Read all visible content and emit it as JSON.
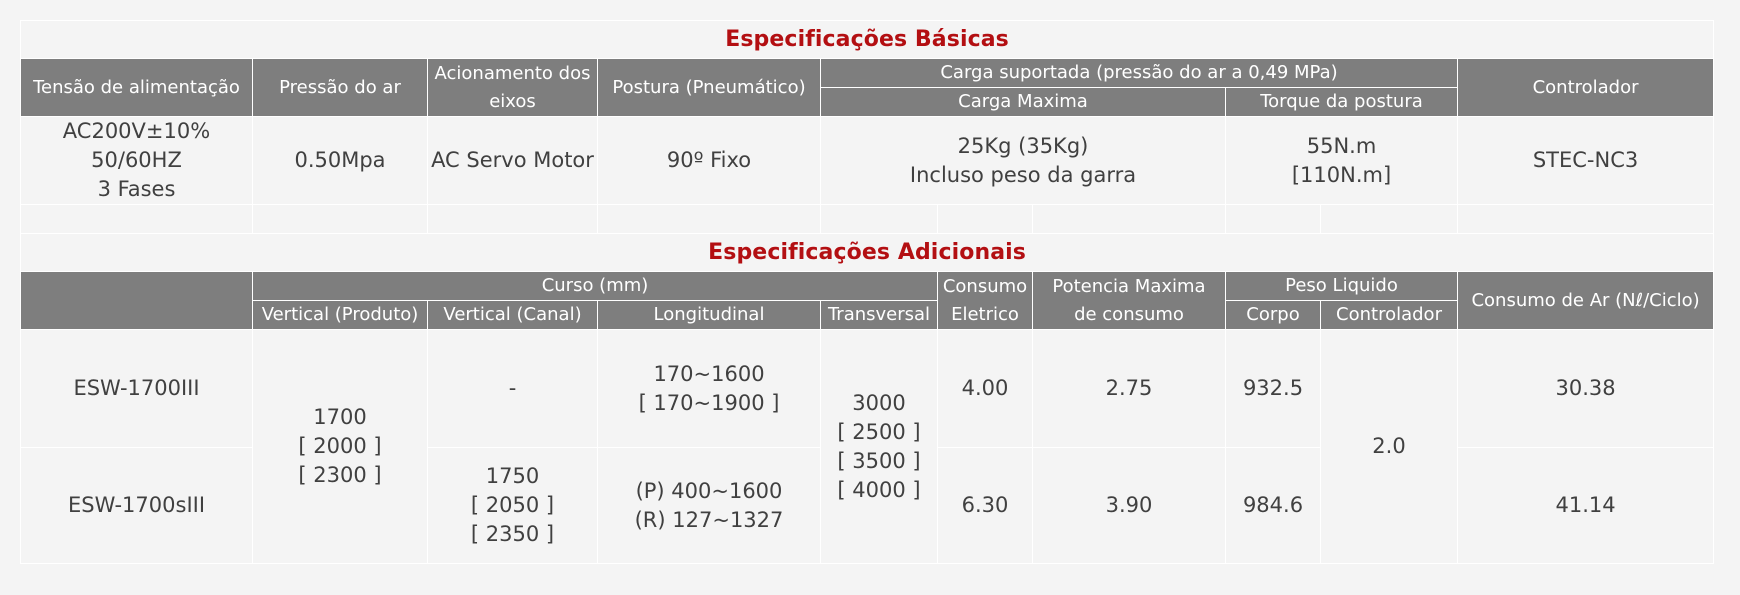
{
  "basic": {
    "title": "Especificações Básicas",
    "headers": {
      "tensao": "Tensão de alimentação",
      "pressao": "Pressão do ar",
      "acionamento": [
        "Acionamento dos",
        "eixos"
      ],
      "postura": "Postura (Pneumático)",
      "carga_group": "Carga suportada (pressão do ar a 0,49 MPa)",
      "carga_max": "Carga Maxima",
      "torque": "Torque da postura",
      "controlador": "Controlador"
    },
    "values": {
      "tensao": [
        "AC200V±10%",
        "50/60HZ",
        "3 Fases"
      ],
      "pressao": "0.50Mpa",
      "acionamento": "AC Servo Motor",
      "postura": "90º Fixo",
      "carga_max": [
        "25Kg (35Kg)",
        "Incluso peso da garra"
      ],
      "torque": [
        "55N.m",
        "[110N.m]"
      ],
      "controlador": "STEC-NC3"
    }
  },
  "additional": {
    "title": "Especificações Adicionais",
    "headers": {
      "curso_group": "Curso (mm)",
      "vertical_produto": "Vertical (Produto)",
      "vertical_canal": "Vertical (Canal)",
      "longitudinal": "Longitudinal",
      "transversal": "Transversal",
      "consumo_eletrico": [
        "Consumo",
        "Eletrico"
      ],
      "potencia": [
        "Potencia Maxima",
        "de consumo"
      ],
      "peso_group": "Peso Liquido",
      "corpo": "Corpo",
      "controlador": "Controlador",
      "consumo_ar": "Consumo de Ar (Nℓ/Ciclo)"
    },
    "shared": {
      "vertical_produto": [
        "1700",
        "[ 2000 ]",
        "[ 2300 ]"
      ],
      "transversal": [
        "3000",
        "[ 2500 ]",
        "[ 3500 ]",
        "[ 4000 ]"
      ],
      "peso_controlador": "2.0"
    },
    "rows": [
      {
        "model": "ESW-1700III",
        "vertical_canal": [
          "-"
        ],
        "longitudinal": [
          "170~1600",
          "[ 170~1900 ]"
        ],
        "consumo_eletrico": "4.00",
        "potencia": "2.75",
        "corpo": "932.5",
        "consumo_ar": "30.38"
      },
      {
        "model": "ESW-1700sIII",
        "vertical_canal": [
          "1750",
          "[ 2050 ]",
          "[ 2350 ]"
        ],
        "longitudinal": [
          "(P) 400~1600",
          "(R) 127~1327"
        ],
        "consumo_eletrico": "6.30",
        "potencia": "3.90",
        "corpo": "984.6",
        "consumo_ar": "41.14"
      }
    ]
  }
}
